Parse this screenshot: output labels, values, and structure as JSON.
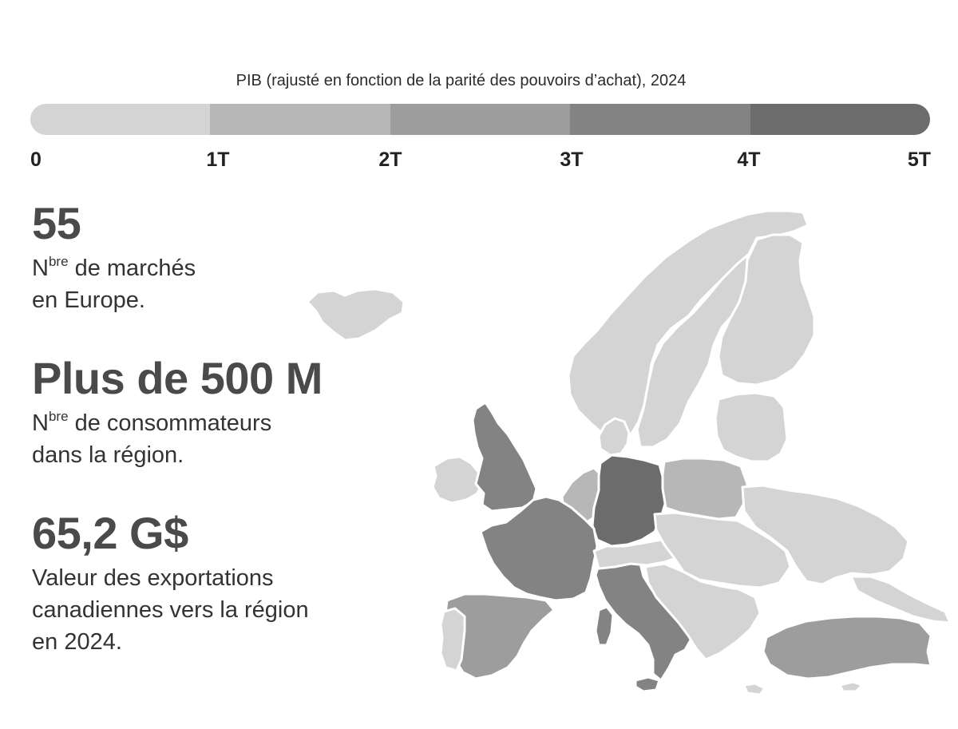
{
  "legend": {
    "title": "PIB (rajusté en fonction de la parité des pouvoirs d’achat), 2024",
    "ticks": [
      "0",
      "1T",
      "2T",
      "3T",
      "4T",
      "5T"
    ],
    "colors": [
      "#d4d4d4",
      "#b7b7b7",
      "#9d9d9d",
      "#838383",
      "#6c6c6c"
    ]
  },
  "stats": [
    {
      "value": "55",
      "label_abbr": "N",
      "label_sup": "bre",
      "label_line1_rest": " de marchés",
      "label_line2": "en Europe."
    },
    {
      "value": "Plus de 500 M",
      "label_abbr": "N",
      "label_sup": "bre",
      "label_line1_rest": " de consommateurs",
      "label_line2": "dans la région."
    },
    {
      "value": "65,2 G$",
      "label_line1": "Valeur des exportations",
      "label_line2": "canadiennes vers la région",
      "label_line3": "en 2024."
    }
  ],
  "map": {
    "regions": [
      {
        "name": "iceland",
        "gdp_tier": 0
      },
      {
        "name": "ireland",
        "gdp_tier": 0
      },
      {
        "name": "united-kingdom",
        "gdp_tier": 3
      },
      {
        "name": "norway",
        "gdp_tier": 0
      },
      {
        "name": "sweden",
        "gdp_tier": 0
      },
      {
        "name": "finland",
        "gdp_tier": 0
      },
      {
        "name": "denmark",
        "gdp_tier": 0
      },
      {
        "name": "baltics",
        "gdp_tier": 0
      },
      {
        "name": "benelux",
        "gdp_tier": 1
      },
      {
        "name": "germany",
        "gdp_tier": 4
      },
      {
        "name": "poland",
        "gdp_tier": 1
      },
      {
        "name": "france",
        "gdp_tier": 3
      },
      {
        "name": "spain",
        "gdp_tier": 2
      },
      {
        "name": "portugal",
        "gdp_tier": 0
      },
      {
        "name": "italy",
        "gdp_tier": 3
      },
      {
        "name": "switzerland-austria",
        "gdp_tier": 0
      },
      {
        "name": "central-europe",
        "gdp_tier": 0
      },
      {
        "name": "balkans",
        "gdp_tier": 0
      },
      {
        "name": "ukraine-belarus",
        "gdp_tier": 0
      },
      {
        "name": "turkey",
        "gdp_tier": 2
      },
      {
        "name": "russia-caucasus",
        "gdp_tier": 0
      },
      {
        "name": "cyprus-crete",
        "gdp_tier": 0
      }
    ]
  }
}
